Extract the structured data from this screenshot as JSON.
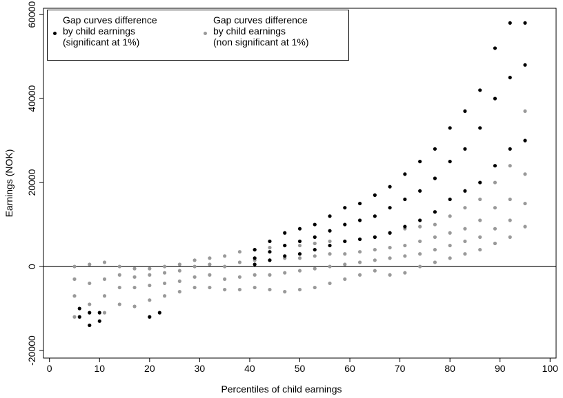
{
  "chart_data": {
    "type": "scatter",
    "x_label": "Percentiles of child earnings",
    "y_label": "Earnings (NOK)",
    "xlim": [
      -1.2,
      101.2
    ],
    "ylim": [
      -21800,
      61500
    ],
    "xticks": [
      0,
      10,
      20,
      30,
      40,
      50,
      60,
      70,
      80,
      90,
      100
    ],
    "yticks": [
      -20000,
      0,
      20000,
      40000,
      60000
    ],
    "hline": 0,
    "legend": "top-left",
    "series": [
      {
        "name": "Gap curves difference\nby child earnings\n(significant at 1%)",
        "color": "#000000",
        "x": [
          6,
          6,
          8,
          8,
          10,
          10,
          20,
          22,
          41,
          41,
          41,
          44,
          44,
          44,
          47,
          47,
          47,
          50,
          50,
          50,
          53,
          53,
          53,
          56,
          56,
          56,
          59,
          59,
          59,
          62,
          62,
          62,
          65,
          65,
          65,
          68,
          68,
          68,
          71,
          71,
          71,
          74,
          74,
          74,
          77,
          77,
          77,
          80,
          80,
          80,
          83,
          83,
          83,
          86,
          86,
          86,
          89,
          89,
          89,
          92,
          92,
          92,
          95,
          95,
          95
        ],
        "values": [
          -10000,
          -12000,
          -11000,
          -14000,
          -11000,
          -13000,
          -12000,
          -11000,
          4000,
          2000,
          500,
          6000,
          3500,
          1500,
          8000,
          5000,
          2500,
          9000,
          6000,
          3000,
          10000,
          7000,
          4000,
          12000,
          8500,
          5000,
          14000,
          10000,
          6000,
          15000,
          11000,
          6500,
          17000,
          12000,
          7000,
          19000,
          14000,
          8000,
          22000,
          16000,
          9500,
          25000,
          18000,
          11000,
          28000,
          21000,
          13000,
          33000,
          25000,
          16000,
          37000,
          28000,
          18000,
          42000,
          33000,
          20000,
          52000,
          40000,
          24000,
          58000,
          45000,
          28000,
          58000,
          48000,
          30000
        ]
      },
      {
        "name": "Gap curves difference\nby child earnings\n(non significant at 1%)",
        "color": "#999999",
        "x": [
          5,
          5,
          5,
          5,
          8,
          8,
          8,
          8,
          11,
          11,
          11,
          11,
          14,
          14,
          14,
          14,
          17,
          17,
          17,
          17,
          20,
          20,
          20,
          20,
          23,
          23,
          23,
          23,
          26,
          26,
          26,
          26,
          29,
          29,
          29,
          29,
          32,
          32,
          32,
          32,
          35,
          35,
          35,
          35,
          38,
          38,
          38,
          38,
          41,
          41,
          41,
          41,
          44,
          44,
          44,
          44,
          47,
          47,
          47,
          47,
          50,
          50,
          50,
          50,
          53,
          53,
          53,
          53,
          56,
          56,
          56,
          56,
          59,
          59,
          59,
          59,
          62,
          62,
          62,
          62,
          65,
          65,
          65,
          65,
          68,
          68,
          68,
          68,
          71,
          71,
          71,
          71,
          74,
          74,
          74,
          74,
          77,
          77,
          77,
          77,
          80,
          80,
          80,
          80,
          83,
          83,
          83,
          83,
          86,
          86,
          86,
          86,
          89,
          89,
          89,
          89,
          92,
          92,
          92,
          92,
          95,
          95,
          95,
          95
        ],
        "values": [
          0,
          -3000,
          -7000,
          -12000,
          500,
          -4000,
          -9000,
          -14000,
          1000,
          -3000,
          -7000,
          -11000,
          0,
          -2000,
          -5000,
          -9000,
          -500,
          -2500,
          -5000,
          -9500,
          -500,
          -2000,
          -4500,
          -8000,
          0,
          -1500,
          -4000,
          -7000,
          500,
          -1000,
          -3500,
          -6000,
          1500,
          0,
          -2500,
          -5000,
          2000,
          500,
          -2000,
          -5000,
          2500,
          0,
          -3000,
          -5500,
          3500,
          1000,
          -2500,
          -5500,
          4000,
          1500,
          -2000,
          -5000,
          4500,
          1500,
          -2000,
          -5500,
          5000,
          2000,
          -1500,
          -6000,
          5000,
          2000,
          -1000,
          -5500,
          5500,
          2500,
          -500,
          -5000,
          6000,
          3000,
          0,
          -4000,
          6000,
          3000,
          500,
          -3000,
          6500,
          3500,
          1000,
          -2000,
          7000,
          4000,
          1500,
          -1000,
          8000,
          4500,
          2000,
          -2000,
          9000,
          5000,
          2500,
          -1500,
          9500,
          6000,
          3000,
          0,
          10000,
          7000,
          4000,
          1000,
          12000,
          8000,
          5000,
          2000,
          14000,
          9000,
          6000,
          3000,
          16000,
          11000,
          7000,
          4000,
          20000,
          14000,
          9000,
          5500,
          24000,
          16000,
          11000,
          7000,
          37000,
          22000,
          15000,
          9500
        ]
      }
    ]
  }
}
